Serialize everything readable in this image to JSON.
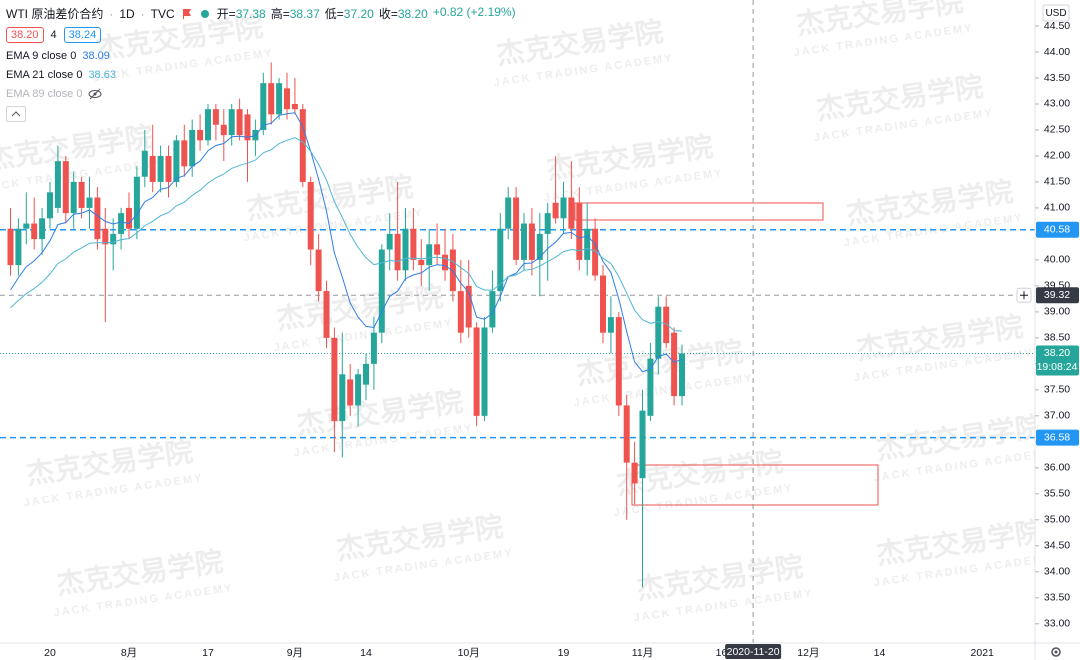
{
  "header": {
    "symbol": "WTI 原油差价合约",
    "interval": "1D",
    "source": "TVC",
    "ohlc": [
      {
        "label": "开=",
        "value": "37.38"
      },
      {
        "label": "高=",
        "value": "38.37"
      },
      {
        "label": "低=",
        "value": "37.20"
      },
      {
        "label": "收=",
        "value": "38.20"
      }
    ],
    "change": "+0.82 (+2.19%)",
    "price_boxes": [
      "38.20",
      "4",
      "38.24"
    ],
    "currency": "USD"
  },
  "watermark": {
    "cn": "杰克交易学院",
    "en": "JACK TRADING ACADEMY"
  },
  "chart_data": {
    "type": "candlestick",
    "ylim": [
      32.63,
      45.0
    ],
    "yticks": [
      {
        "value": 33.0,
        "label": "33.00"
      },
      {
        "value": 33.5,
        "label": "33.50"
      },
      {
        "value": 34.0,
        "label": "34.00"
      },
      {
        "value": 34.5,
        "label": "34.50"
      },
      {
        "value": 35.0,
        "label": "35.00"
      },
      {
        "value": 35.5,
        "label": "35.50"
      },
      {
        "value": 36.0,
        "label": "36.00"
      },
      {
        "value": 36.5,
        "label": "36.50"
      },
      {
        "value": 37.0,
        "label": "37.00"
      },
      {
        "value": 37.5,
        "label": "37.50"
      },
      {
        "value": 38.0,
        "label": "38.00"
      },
      {
        "value": 38.5,
        "label": "38.50"
      },
      {
        "value": 39.0,
        "label": "39.00"
      },
      {
        "value": 39.5,
        "label": "39.50"
      },
      {
        "value": 40.0,
        "label": "40.00"
      },
      {
        "value": 40.5,
        "label": "40.50"
      },
      {
        "value": 41.0,
        "label": "41.00"
      },
      {
        "value": 41.5,
        "label": "41.50"
      },
      {
        "value": 42.0,
        "label": "42.00"
      },
      {
        "value": 42.5,
        "label": "42.50"
      },
      {
        "value": 43.0,
        "label": "43.00"
      },
      {
        "value": 43.5,
        "label": "43.50"
      },
      {
        "value": 44.0,
        "label": "44.00"
      },
      {
        "value": 44.5,
        "label": "44.50"
      }
    ],
    "grid": false,
    "up_color": "#26a69a",
    "down_color": "#ef5350",
    "categories": [
      null,
      null,
      null,
      null,
      null,
      "20",
      null,
      null,
      null,
      null,
      null,
      null,
      null,
      null,
      null,
      "8月",
      null,
      null,
      null,
      null,
      null,
      null,
      null,
      null,
      null,
      "17",
      null,
      null,
      null,
      null,
      null,
      null,
      null,
      null,
      null,
      null,
      "9月",
      null,
      null,
      null,
      null,
      null,
      null,
      null,
      null,
      "14",
      null,
      null,
      null,
      null,
      null,
      null,
      null,
      null,
      null,
      null,
      null,
      null,
      "10月",
      null,
      null,
      null,
      null,
      null,
      null,
      null,
      null,
      null,
      null,
      null,
      "19",
      null,
      null,
      null,
      null,
      null,
      null,
      null,
      null,
      null,
      "11月",
      null,
      null,
      null,
      null,
      null,
      null,
      null,
      null,
      null,
      "16",
      null,
      null,
      null,
      null,
      null,
      null,
      null,
      null,
      null,
      null,
      "12月",
      null,
      null,
      null,
      null,
      null,
      null,
      null,
      null,
      "14",
      null,
      null,
      null,
      null,
      null,
      null,
      null,
      null,
      null,
      null,
      null,
      null,
      "2021",
      null,
      null,
      null,
      null,
      null,
      null
    ],
    "open": [
      40.6,
      39.9,
      40.6,
      40.7,
      40.4,
      40.8,
      41.0,
      41.9,
      40.9,
      41.5,
      41.0,
      41.2,
      40.6,
      40.3,
      40.5,
      41.0,
      40.6,
      41.6,
      42.0,
      41.5,
      42.0,
      41.5,
      42.3,
      41.8,
      42.5,
      42.3,
      42.9,
      42.6,
      42.4,
      42.9,
      42.8,
      42.3,
      42.5,
      43.4,
      42.8,
      43.3,
      43.0,
      42.9,
      41.5,
      40.2,
      39.4,
      38.5,
      36.9,
      37.7,
      37.2,
      37.6,
      38.0,
      38.6,
      40.2,
      40.5,
      39.8,
      40.6,
      40.0,
      39.9,
      40.3,
      40.1,
      40.2,
      39.4,
      39.5,
      38.7,
      37.0,
      38.7,
      39.4,
      40.6,
      41.2,
      40.0,
      40.7,
      40.0,
      40.5,
      41.1,
      40.8,
      41.2,
      41.1,
      40.0,
      40.6,
      39.7,
      38.6,
      38.9,
      37.2,
      36.1,
      35.8,
      37.0,
      38.1,
      39.1,
      38.6,
      37.38,
      null,
      null,
      null,
      null,
      null,
      null,
      null,
      null,
      null,
      null,
      null,
      null,
      null,
      null,
      null,
      null,
      null,
      null,
      null,
      null,
      null,
      null,
      null,
      null,
      null,
      null,
      null,
      null,
      null,
      null,
      null,
      null,
      null,
      null,
      null,
      null,
      null,
      null,
      null,
      null,
      null,
      null,
      null,
      null
    ],
    "high": [
      41.0,
      40.8,
      41.3,
      41.2,
      41.0,
      41.5,
      42.2,
      42.0,
      41.7,
      41.6,
      41.6,
      41.4,
      41.0,
      40.8,
      41.0,
      41.3,
      41.8,
      42.5,
      42.6,
      42.2,
      42.2,
      42.4,
      42.6,
      42.7,
      42.8,
      43.0,
      43.0,
      42.9,
      43.0,
      43.1,
      42.9,
      42.7,
      43.6,
      43.8,
      43.5,
      43.6,
      43.5,
      43.0,
      41.6,
      40.5,
      39.6,
      38.7,
      38.6,
      38.0,
      37.9,
      38.2,
      38.9,
      40.3,
      40.9,
      41.5,
      41.0,
      41.0,
      40.4,
      40.6,
      40.7,
      40.6,
      40.5,
      40.0,
      40.0,
      38.8,
      38.9,
      39.8,
      40.9,
      41.4,
      41.4,
      40.9,
      41.0,
      40.9,
      41.1,
      42.0,
      41.5,
      41.9,
      41.4,
      41.1,
      40.8,
      39.9,
      39.3,
      39.0,
      37.4,
      36.5,
      37.5,
      38.4,
      39.3,
      39.3,
      38.7,
      38.37,
      null,
      null,
      null,
      null,
      null,
      null,
      null,
      null,
      null,
      null,
      null,
      null,
      null,
      null,
      null,
      null,
      null,
      null,
      null,
      null,
      null,
      null,
      null,
      null,
      null,
      null,
      null,
      null,
      null,
      null,
      null,
      null,
      null,
      null,
      null,
      null,
      null,
      null,
      null,
      null,
      null,
      null,
      null,
      null
    ],
    "low": [
      39.7,
      39.7,
      40.3,
      40.2,
      40.1,
      40.6,
      40.9,
      40.7,
      40.6,
      40.8,
      40.6,
      40.2,
      38.8,
      39.8,
      40.2,
      40.4,
      40.4,
      41.4,
      41.3,
      41.3,
      41.2,
      41.4,
      41.6,
      41.6,
      42.1,
      42.2,
      42.3,
      41.9,
      42.2,
      42.3,
      41.5,
      42.0,
      42.4,
      42.6,
      42.7,
      42.7,
      42.8,
      41.4,
      39.9,
      39.2,
      38.3,
      36.3,
      36.2,
      37.0,
      36.8,
      37.3,
      37.5,
      38.4,
      39.8,
      39.6,
      39.6,
      39.8,
      39.5,
      39.4,
      39.9,
      39.6,
      39.2,
      38.4,
      38.5,
      36.8,
      36.9,
      38.6,
      39.2,
      40.4,
      39.9,
      39.8,
      39.7,
      39.3,
      39.6,
      40.7,
      40.5,
      40.4,
      39.8,
      39.7,
      39.6,
      38.4,
      38.2,
      37.0,
      35.0,
      35.3,
      33.7,
      36.9,
      37.8,
      38.3,
      37.2,
      37.2,
      null,
      null,
      null,
      null,
      null,
      null,
      null,
      null,
      null,
      null,
      null,
      null,
      null,
      null,
      null,
      null,
      null,
      null,
      null,
      null,
      null,
      null,
      null,
      null,
      null,
      null,
      null,
      null,
      null,
      null,
      null,
      null,
      null,
      null,
      null,
      null,
      null,
      null,
      null,
      null,
      null,
      null,
      null,
      null
    ],
    "close": [
      39.9,
      40.6,
      40.7,
      40.4,
      40.8,
      41.3,
      41.9,
      40.9,
      41.5,
      41.0,
      41.2,
      40.4,
      40.3,
      40.5,
      40.9,
      40.6,
      41.6,
      42.1,
      41.5,
      42.0,
      41.5,
      42.3,
      41.8,
      42.5,
      42.3,
      42.9,
      42.6,
      42.4,
      42.9,
      42.4,
      42.3,
      42.5,
      43.4,
      42.8,
      43.4,
      42.9,
      42.9,
      41.5,
      40.2,
      39.4,
      38.5,
      36.9,
      37.8,
      37.2,
      37.8,
      38.0,
      38.6,
      40.2,
      40.5,
      39.8,
      40.6,
      40.0,
      39.9,
      40.3,
      40.1,
      39.8,
      39.4,
      38.6,
      38.7,
      37.0,
      38.7,
      39.4,
      40.6,
      41.2,
      40.0,
      40.7,
      40.0,
      40.5,
      40.9,
      40.8,
      41.2,
      40.6,
      40.0,
      40.6,
      39.7,
      38.6,
      38.9,
      37.2,
      36.1,
      35.7,
      37.1,
      38.1,
      39.1,
      38.4,
      37.38,
      38.2,
      null,
      null,
      null,
      null,
      null,
      null,
      null,
      null,
      null,
      null,
      null,
      null,
      null,
      null,
      null,
      null,
      null,
      null,
      null,
      null,
      null,
      null,
      null,
      null,
      null,
      null,
      null,
      null,
      null,
      null,
      null,
      null,
      null,
      null,
      null,
      null,
      null,
      null,
      null,
      null,
      null,
      null,
      null,
      null
    ],
    "series": [
      {
        "name": "EMA 9 close 0",
        "color": "#2f7ee8",
        "values": [
          39.42,
          39.66,
          39.87,
          39.98,
          40.14,
          40.37,
          40.68,
          40.72,
          40.88,
          40.9,
          40.96,
          40.85,
          40.74,
          40.69,
          40.73,
          40.7,
          40.88,
          41.12,
          41.2,
          41.36,
          41.39,
          41.57,
          41.62,
          41.8,
          41.9,
          42.1,
          42.2,
          42.24,
          42.37,
          42.38,
          42.36,
          42.39,
          42.59,
          42.63,
          42.78,
          42.81,
          42.83,
          42.56,
          42.09,
          41.55,
          40.94,
          40.13,
          39.67,
          39.17,
          38.9,
          38.72,
          38.7,
          39.0,
          39.3,
          39.4,
          39.64,
          39.71,
          39.75,
          39.86,
          39.91,
          39.89,
          39.79,
          39.55,
          39.38,
          38.9,
          38.86,
          38.97,
          39.3,
          39.68,
          39.74,
          39.93,
          39.94,
          40.05,
          40.22,
          40.34,
          40.51,
          40.53,
          40.42,
          40.46,
          40.31,
          39.97,
          39.76,
          39.25,
          38.62,
          38.04,
          37.85,
          37.9,
          38.14,
          38.19,
          38.03,
          38.09,
          null,
          null,
          null,
          null,
          null,
          null,
          null,
          null,
          null,
          null,
          null,
          null,
          null,
          null,
          null,
          null,
          null,
          null,
          null,
          null,
          null,
          null,
          null,
          null,
          null,
          null,
          null,
          null,
          null,
          null,
          null,
          null,
          null,
          null,
          null,
          null,
          null,
          null,
          null,
          null,
          null,
          null,
          null,
          null
        ]
      },
      {
        "name": "EMA 21 close 0",
        "color": "#4db6d6",
        "values": [
          39.08,
          39.22,
          39.35,
          39.45,
          39.57,
          39.73,
          39.93,
          40.02,
          40.15,
          40.23,
          40.32,
          40.33,
          40.33,
          40.34,
          40.39,
          40.41,
          40.52,
          40.66,
          40.74,
          40.85,
          40.91,
          41.04,
          41.11,
          41.24,
          41.34,
          41.48,
          41.58,
          41.65,
          41.76,
          41.82,
          41.86,
          41.92,
          42.06,
          42.12,
          42.24,
          42.3,
          42.35,
          42.27,
          42.09,
          41.84,
          41.54,
          41.12,
          40.82,
          40.49,
          40.24,
          40.04,
          39.91,
          39.94,
          39.99,
          39.97,
          40.03,
          40.03,
          40.02,
          40.04,
          40.05,
          40.03,
          39.97,
          39.85,
          39.74,
          39.49,
          39.42,
          39.42,
          39.53,
          39.68,
          39.71,
          39.8,
          39.82,
          39.88,
          39.97,
          40.05,
          40.16,
          40.2,
          40.18,
          40.22,
          40.17,
          40.03,
          39.93,
          39.68,
          39.36,
          39.03,
          38.85,
          38.78,
          38.81,
          38.77,
          38.64,
          38.63,
          null,
          null,
          null,
          null,
          null,
          null,
          null,
          null,
          null,
          null,
          null,
          null,
          null,
          null,
          null,
          null,
          null,
          null,
          null,
          null,
          null,
          null,
          null,
          null,
          null,
          null,
          null,
          null,
          null,
          null,
          null,
          null,
          null,
          null,
          null,
          null,
          null,
          null,
          null,
          null,
          null,
          null,
          null,
          null
        ]
      }
    ],
    "hidden_indicator": "EMA 89 close 0",
    "horizontal_lines": [
      40.58,
      36.58
    ],
    "last_price": {
      "value": 38.2,
      "label": "38.20"
    },
    "countdown": "19:08:24",
    "crosshair": {
      "price": 39.32,
      "date": "2020-11-20"
    }
  }
}
